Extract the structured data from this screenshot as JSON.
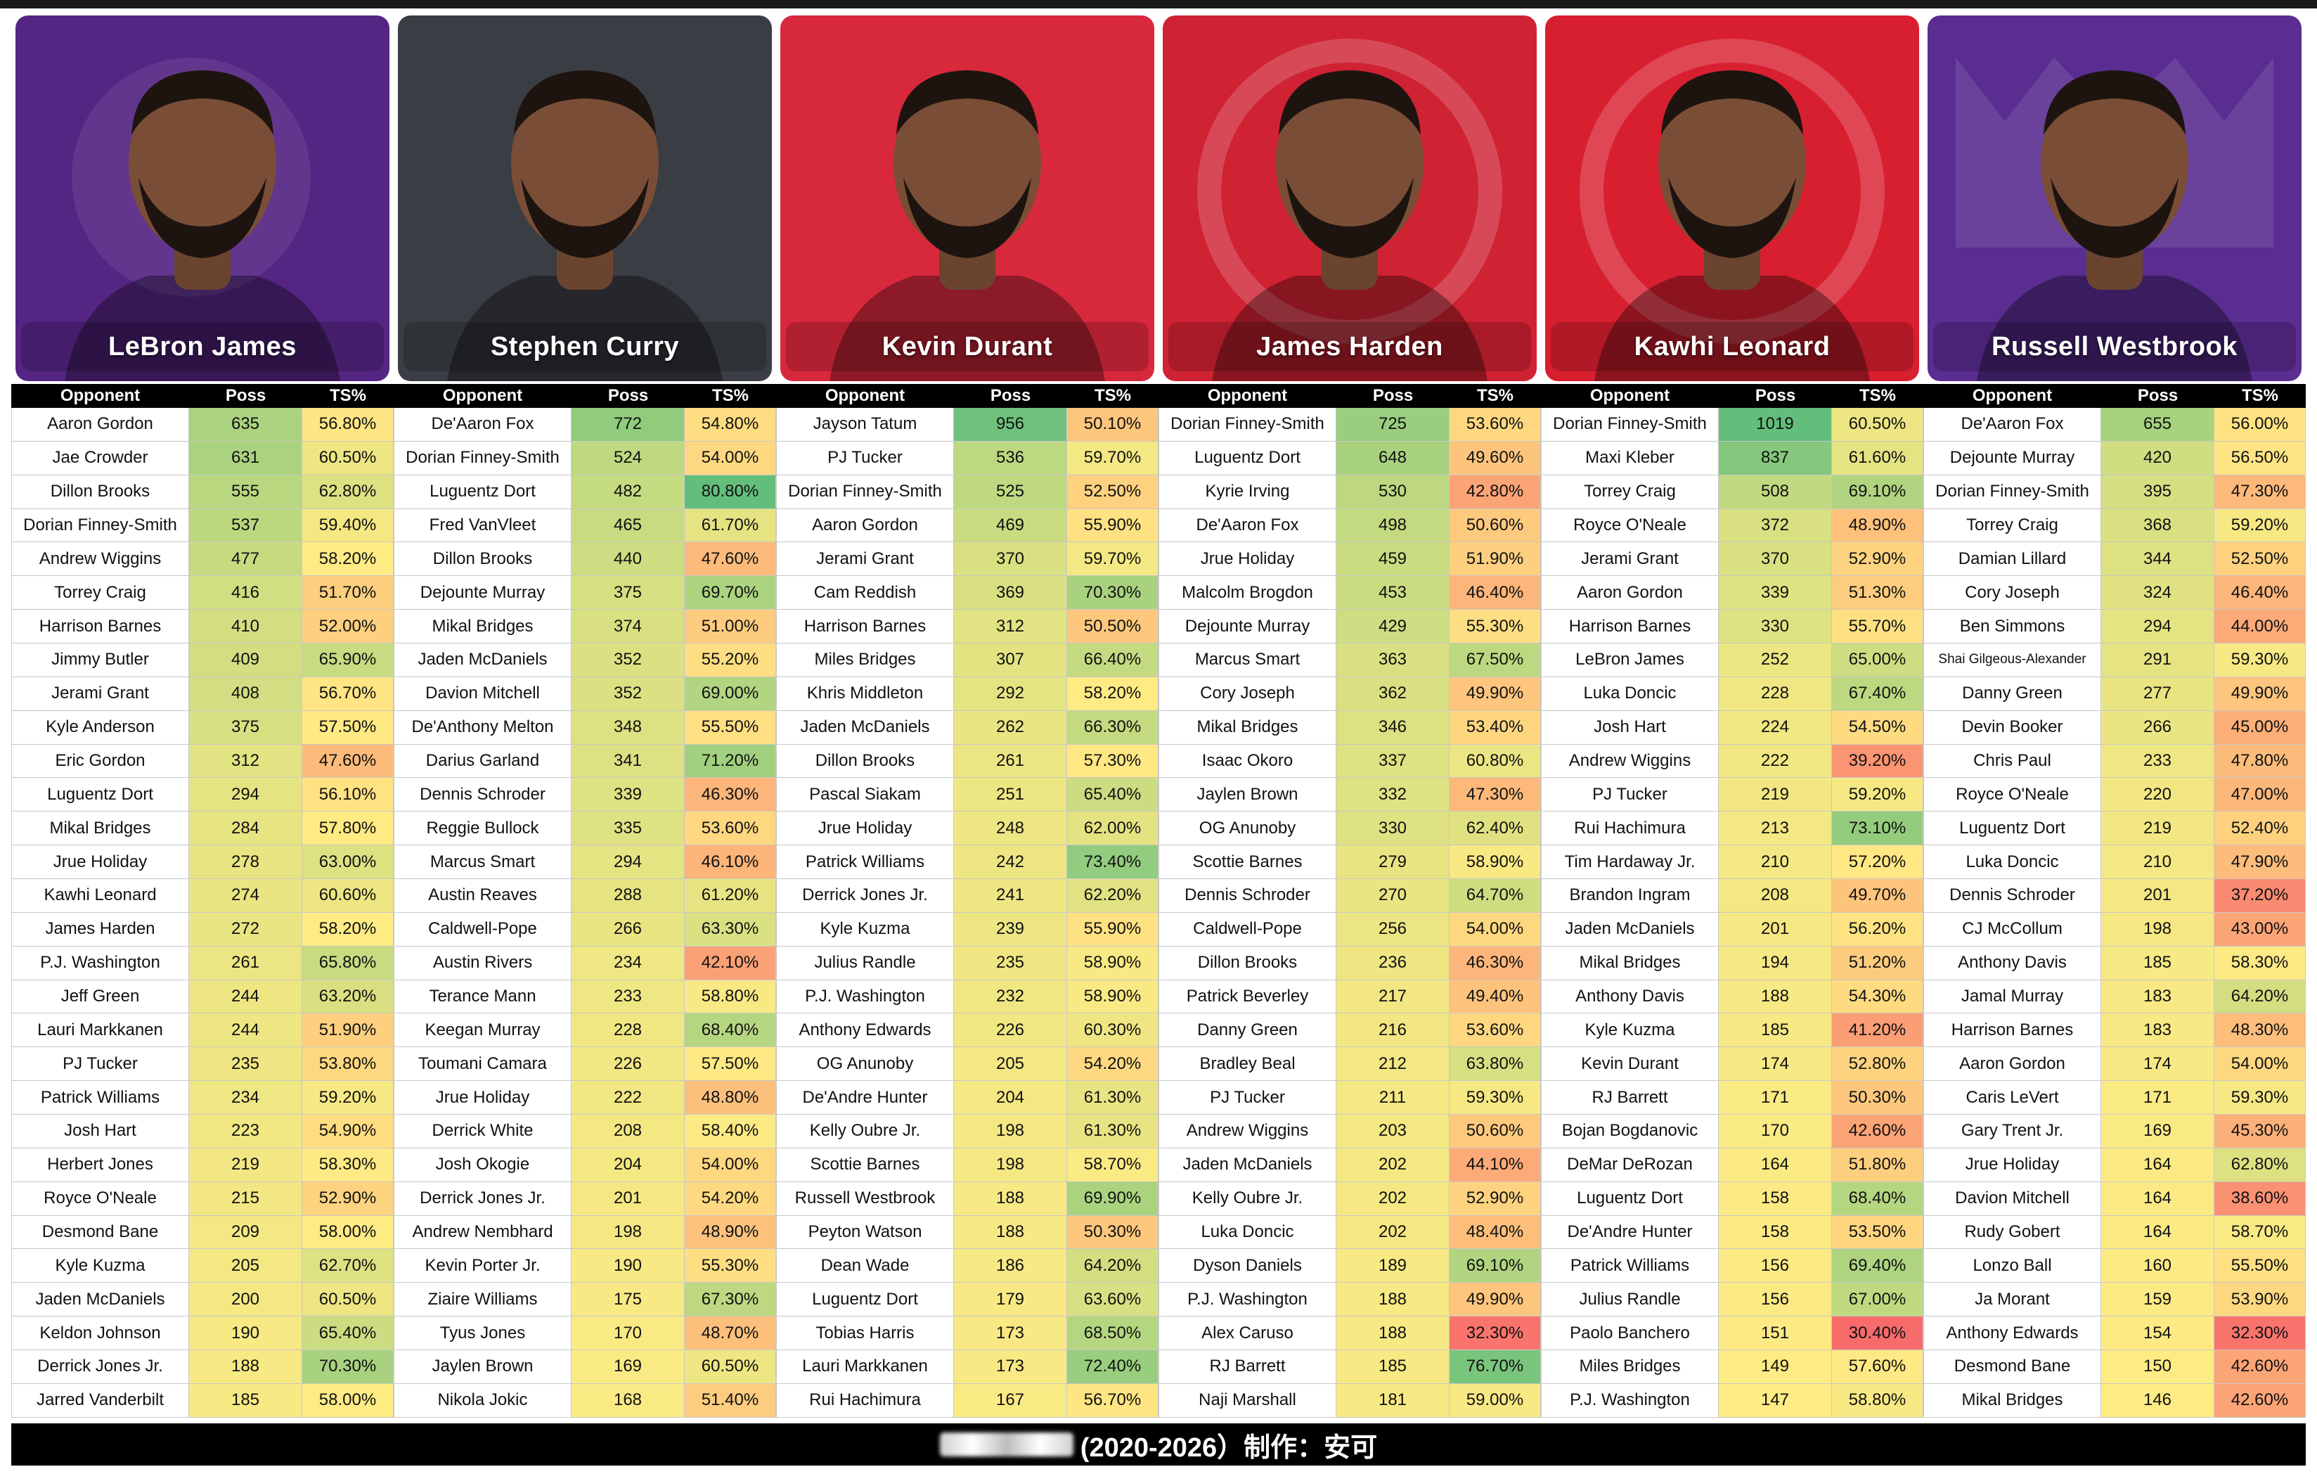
{
  "header": {
    "columns": {
      "opponent": "Opponent",
      "poss": "Poss",
      "ts": "TS%"
    }
  },
  "footer": {
    "text": "(2020-2026）制作：安可"
  },
  "colors": {
    "low_ts": "#f8696b",
    "mid_ts": "#ffeb84",
    "high_ts": "#63be7b",
    "table_header": "#000000"
  },
  "chart_data": {
    "type": "table",
    "color_scale": {
      "ts": {
        "low": 30,
        "mid": 58,
        "high": 80
      },
      "poss": {
        "low": 140,
        "high": 1020
      }
    },
    "players": [
      {
        "name": "LeBron James",
        "team_color": "#552583",
        "logo": "lakers-logo",
        "rows": [
          [
            "Aaron Gordon",
            635,
            "56.80%"
          ],
          [
            "Jae Crowder",
            631,
            "60.50%"
          ],
          [
            "Dillon Brooks",
            555,
            "62.80%"
          ],
          [
            "Dorian Finney-Smith",
            537,
            "59.40%"
          ],
          [
            "Andrew Wiggins",
            477,
            "58.20%"
          ],
          [
            "Torrey Craig",
            416,
            "51.70%"
          ],
          [
            "Harrison Barnes",
            410,
            "52.00%"
          ],
          [
            "Jimmy Butler",
            409,
            "65.90%"
          ],
          [
            "Jerami Grant",
            408,
            "56.70%"
          ],
          [
            "Kyle Anderson",
            375,
            "57.50%"
          ],
          [
            "Eric Gordon",
            312,
            "47.60%"
          ],
          [
            "Luguentz Dort",
            294,
            "56.10%"
          ],
          [
            "Mikal Bridges",
            284,
            "57.80%"
          ],
          [
            "Jrue Holiday",
            278,
            "63.00%"
          ],
          [
            "Kawhi Leonard",
            274,
            "60.60%"
          ],
          [
            "James Harden",
            272,
            "58.20%"
          ],
          [
            "P.J. Washington",
            261,
            "65.80%"
          ],
          [
            "Jeff Green",
            244,
            "63.20%"
          ],
          [
            "Lauri Markkanen",
            244,
            "51.90%"
          ],
          [
            "PJ Tucker",
            235,
            "53.80%"
          ],
          [
            "Patrick Williams",
            234,
            "59.20%"
          ],
          [
            "Josh Hart",
            223,
            "54.90%"
          ],
          [
            "Herbert Jones",
            219,
            "58.30%"
          ],
          [
            "Royce O'Neale",
            215,
            "52.90%"
          ],
          [
            "Desmond Bane",
            209,
            "58.00%"
          ],
          [
            "Kyle Kuzma",
            205,
            "62.70%"
          ],
          [
            "Jaden McDaniels",
            200,
            "60.50%"
          ],
          [
            "Keldon Johnson",
            190,
            "65.40%"
          ],
          [
            "Derrick Jones Jr.",
            188,
            "70.30%"
          ],
          [
            "Jarred Vanderbilt",
            185,
            "58.00%"
          ]
        ]
      },
      {
        "name": "Stephen Curry",
        "team_color": "#3a3d44",
        "logo": "none",
        "rows": [
          [
            "De'Aaron Fox",
            772,
            "54.80%"
          ],
          [
            "Dorian Finney-Smith",
            524,
            "54.00%"
          ],
          [
            "Luguentz Dort",
            482,
            "80.80%"
          ],
          [
            "Fred VanVleet",
            465,
            "61.70%"
          ],
          [
            "Dillon Brooks",
            440,
            "47.60%"
          ],
          [
            "Dejounte Murray",
            375,
            "69.70%"
          ],
          [
            "Mikal Bridges",
            374,
            "51.00%"
          ],
          [
            "Jaden McDaniels",
            352,
            "55.20%"
          ],
          [
            "Davion Mitchell",
            352,
            "69.00%"
          ],
          [
            "De'Anthony Melton",
            348,
            "55.50%"
          ],
          [
            "Darius Garland",
            341,
            "71.20%"
          ],
          [
            "Dennis Schroder",
            339,
            "46.30%"
          ],
          [
            "Reggie Bullock",
            335,
            "53.60%"
          ],
          [
            "Marcus Smart",
            294,
            "46.10%"
          ],
          [
            "Austin Reaves",
            288,
            "61.20%"
          ],
          [
            "Caldwell-Pope",
            266,
            "63.30%"
          ],
          [
            "Austin Rivers",
            234,
            "42.10%"
          ],
          [
            "Terance Mann",
            233,
            "58.80%"
          ],
          [
            "Keegan Murray",
            228,
            "68.40%"
          ],
          [
            "Toumani Camara",
            226,
            "57.50%"
          ],
          [
            "Jrue Holiday",
            222,
            "48.80%"
          ],
          [
            "Derrick White",
            208,
            "58.40%"
          ],
          [
            "Josh Okogie",
            204,
            "54.00%"
          ],
          [
            "Derrick Jones Jr.",
            201,
            "54.20%"
          ],
          [
            "Andrew Nembhard",
            198,
            "48.90%"
          ],
          [
            "Kevin Porter Jr.",
            190,
            "55.30%"
          ],
          [
            "Ziaire Williams",
            175,
            "67.30%"
          ],
          [
            "Tyus Jones",
            170,
            "48.70%"
          ],
          [
            "Jaylen Brown",
            169,
            "60.50%"
          ],
          [
            "Nikola Jokic",
            168,
            "51.40%"
          ]
        ]
      },
      {
        "name": "Kevin Durant",
        "team_color": "#d8283c",
        "logo": "none",
        "rows": [
          [
            "Jayson Tatum",
            956,
            "50.10%"
          ],
          [
            "PJ Tucker",
            536,
            "59.70%"
          ],
          [
            "Dorian Finney-Smith",
            525,
            "52.50%"
          ],
          [
            "Aaron Gordon",
            469,
            "55.90%"
          ],
          [
            "Jerami Grant",
            370,
            "59.70%"
          ],
          [
            "Cam Reddish",
            369,
            "70.30%"
          ],
          [
            "Harrison Barnes",
            312,
            "50.50%"
          ],
          [
            "Miles Bridges",
            307,
            "66.40%"
          ],
          [
            "Khris Middleton",
            292,
            "58.20%"
          ],
          [
            "Jaden McDaniels",
            262,
            "66.30%"
          ],
          [
            "Dillon Brooks",
            261,
            "57.30%"
          ],
          [
            "Pascal Siakam",
            251,
            "65.40%"
          ],
          [
            "Jrue Holiday",
            248,
            "62.00%"
          ],
          [
            "Patrick Williams",
            242,
            "73.40%"
          ],
          [
            "Derrick Jones Jr.",
            241,
            "62.20%"
          ],
          [
            "Kyle Kuzma",
            239,
            "55.90%"
          ],
          [
            "Julius Randle",
            235,
            "58.90%"
          ],
          [
            "P.J. Washington",
            232,
            "58.90%"
          ],
          [
            "Anthony Edwards",
            226,
            "60.30%"
          ],
          [
            "OG Anunoby",
            205,
            "54.20%"
          ],
          [
            "De'Andre Hunter",
            204,
            "61.30%"
          ],
          [
            "Kelly Oubre Jr.",
            198,
            "61.30%"
          ],
          [
            "Scottie Barnes",
            198,
            "58.70%"
          ],
          [
            "Russell Westbrook",
            188,
            "69.90%"
          ],
          [
            "Peyton Watson",
            188,
            "50.30%"
          ],
          [
            "Dean Wade",
            186,
            "64.20%"
          ],
          [
            "Luguentz Dort",
            179,
            "63.60%"
          ],
          [
            "Tobias Harris",
            173,
            "68.50%"
          ],
          [
            "Lauri Markkanen",
            173,
            "72.40%"
          ],
          [
            "Rui Hachimura",
            167,
            "56.70%"
          ]
        ]
      },
      {
        "name": "James Harden",
        "team_color": "#cf2232",
        "logo": "clippers-logo",
        "rows": [
          [
            "Dorian Finney-Smith",
            725,
            "53.60%"
          ],
          [
            "Luguentz Dort",
            648,
            "49.60%"
          ],
          [
            "Kyrie Irving",
            530,
            "42.80%"
          ],
          [
            "De'Aaron Fox",
            498,
            "50.60%"
          ],
          [
            "Jrue Holiday",
            459,
            "51.90%"
          ],
          [
            "Malcolm Brogdon",
            453,
            "46.40%"
          ],
          [
            "Dejounte Murray",
            429,
            "55.30%"
          ],
          [
            "Marcus Smart",
            363,
            "67.50%"
          ],
          [
            "Cory Joseph",
            362,
            "49.90%"
          ],
          [
            "Mikal Bridges",
            346,
            "53.40%"
          ],
          [
            "Isaac Okoro",
            337,
            "60.80%"
          ],
          [
            "Jaylen Brown",
            332,
            "47.30%"
          ],
          [
            "OG Anunoby",
            330,
            "62.40%"
          ],
          [
            "Scottie Barnes",
            279,
            "58.90%"
          ],
          [
            "Dennis Schroder",
            270,
            "64.70%"
          ],
          [
            "Caldwell-Pope",
            256,
            "54.00%"
          ],
          [
            "Dillon Brooks",
            236,
            "46.30%"
          ],
          [
            "Patrick Beverley",
            217,
            "49.40%"
          ],
          [
            "Danny Green",
            216,
            "53.60%"
          ],
          [
            "Bradley Beal",
            212,
            "63.80%"
          ],
          [
            "PJ Tucker",
            211,
            "59.30%"
          ],
          [
            "Andrew Wiggins",
            203,
            "50.60%"
          ],
          [
            "Jaden McDaniels",
            202,
            "44.10%"
          ],
          [
            "Kelly Oubre Jr.",
            202,
            "52.90%"
          ],
          [
            "Luka Doncic",
            202,
            "48.40%"
          ],
          [
            "Dyson Daniels",
            189,
            "69.10%"
          ],
          [
            "P.J. Washington",
            188,
            "49.90%"
          ],
          [
            "Alex Caruso",
            188,
            "32.30%"
          ],
          [
            "RJ Barrett",
            185,
            "76.70%"
          ],
          [
            "Naji Marshall",
            181,
            "59.00%"
          ]
        ]
      },
      {
        "name": "Kawhi Leonard",
        "team_color": "#d81f30",
        "logo": "clippers-logo",
        "rows": [
          [
            "Dorian Finney-Smith",
            1019,
            "60.50%"
          ],
          [
            "Maxi Kleber",
            837,
            "61.60%"
          ],
          [
            "Torrey Craig",
            508,
            "69.10%"
          ],
          [
            "Royce O'Neale",
            372,
            "48.90%"
          ],
          [
            "Jerami Grant",
            370,
            "52.90%"
          ],
          [
            "Aaron Gordon",
            339,
            "51.30%"
          ],
          [
            "Harrison Barnes",
            330,
            "55.70%"
          ],
          [
            "LeBron James",
            252,
            "65.00%"
          ],
          [
            "Luka Doncic",
            228,
            "67.40%"
          ],
          [
            "Josh Hart",
            224,
            "54.50%"
          ],
          [
            "Andrew Wiggins",
            222,
            "39.20%"
          ],
          [
            "PJ Tucker",
            219,
            "59.20%"
          ],
          [
            "Rui Hachimura",
            213,
            "73.10%"
          ],
          [
            "Tim Hardaway Jr.",
            210,
            "57.20%"
          ],
          [
            "Brandon Ingram",
            208,
            "49.70%"
          ],
          [
            "Jaden McDaniels",
            201,
            "56.20%"
          ],
          [
            "Mikal Bridges",
            194,
            "51.20%"
          ],
          [
            "Anthony Davis",
            188,
            "54.30%"
          ],
          [
            "Kyle Kuzma",
            185,
            "41.20%"
          ],
          [
            "Kevin Durant",
            174,
            "52.80%"
          ],
          [
            "RJ Barrett",
            171,
            "50.30%"
          ],
          [
            "Bojan Bogdanovic",
            170,
            "42.60%"
          ],
          [
            "DeMar DeRozan",
            164,
            "51.80%"
          ],
          [
            "Luguentz Dort",
            158,
            "68.40%"
          ],
          [
            "De'Andre Hunter",
            158,
            "53.50%"
          ],
          [
            "Patrick Williams",
            156,
            "69.40%"
          ],
          [
            "Julius Randle",
            156,
            "67.00%"
          ],
          [
            "Paolo Banchero",
            151,
            "30.40%"
          ],
          [
            "Miles Bridges",
            149,
            "57.60%"
          ],
          [
            "P.J. Washington",
            147,
            "58.80%"
          ]
        ]
      },
      {
        "name": "Russell Westbrook",
        "team_color": "#5a2d91",
        "logo": "kings-logo",
        "rows": [
          [
            "De'Aaron Fox",
            655,
            "56.00%"
          ],
          [
            "Dejounte Murray",
            420,
            "56.50%"
          ],
          [
            "Dorian Finney-Smith",
            395,
            "47.30%"
          ],
          [
            "Torrey Craig",
            368,
            "59.20%"
          ],
          [
            "Damian Lillard",
            344,
            "52.50%"
          ],
          [
            "Cory Joseph",
            324,
            "46.40%"
          ],
          [
            "Ben Simmons",
            294,
            "44.00%"
          ],
          [
            "Shai Gilgeous-Alexander",
            291,
            "59.30%"
          ],
          [
            "Danny Green",
            277,
            "49.90%"
          ],
          [
            "Devin Booker",
            266,
            "45.00%"
          ],
          [
            "Chris Paul",
            233,
            "47.80%"
          ],
          [
            "Royce O'Neale",
            220,
            "47.00%"
          ],
          [
            "Luguentz Dort",
            219,
            "52.40%"
          ],
          [
            "Luka Doncic",
            210,
            "47.90%"
          ],
          [
            "Dennis Schroder",
            201,
            "37.20%"
          ],
          [
            "CJ McCollum",
            198,
            "43.00%"
          ],
          [
            "Anthony Davis",
            185,
            "58.30%"
          ],
          [
            "Jamal Murray",
            183,
            "64.20%"
          ],
          [
            "Harrison Barnes",
            183,
            "48.30%"
          ],
          [
            "Aaron Gordon",
            174,
            "54.00%"
          ],
          [
            "Caris LeVert",
            171,
            "59.30%"
          ],
          [
            "Gary Trent Jr.",
            169,
            "45.30%"
          ],
          [
            "Jrue Holiday",
            164,
            "62.80%"
          ],
          [
            "Davion Mitchell",
            164,
            "38.60%"
          ],
          [
            "Rudy Gobert",
            164,
            "58.70%"
          ],
          [
            "Lonzo Ball",
            160,
            "55.50%"
          ],
          [
            "Ja Morant",
            159,
            "53.90%"
          ],
          [
            "Anthony Edwards",
            154,
            "32.30%"
          ],
          [
            "Desmond Bane",
            150,
            "42.60%"
          ],
          [
            "Mikal Bridges",
            146,
            "42.60%"
          ]
        ]
      }
    ]
  }
}
